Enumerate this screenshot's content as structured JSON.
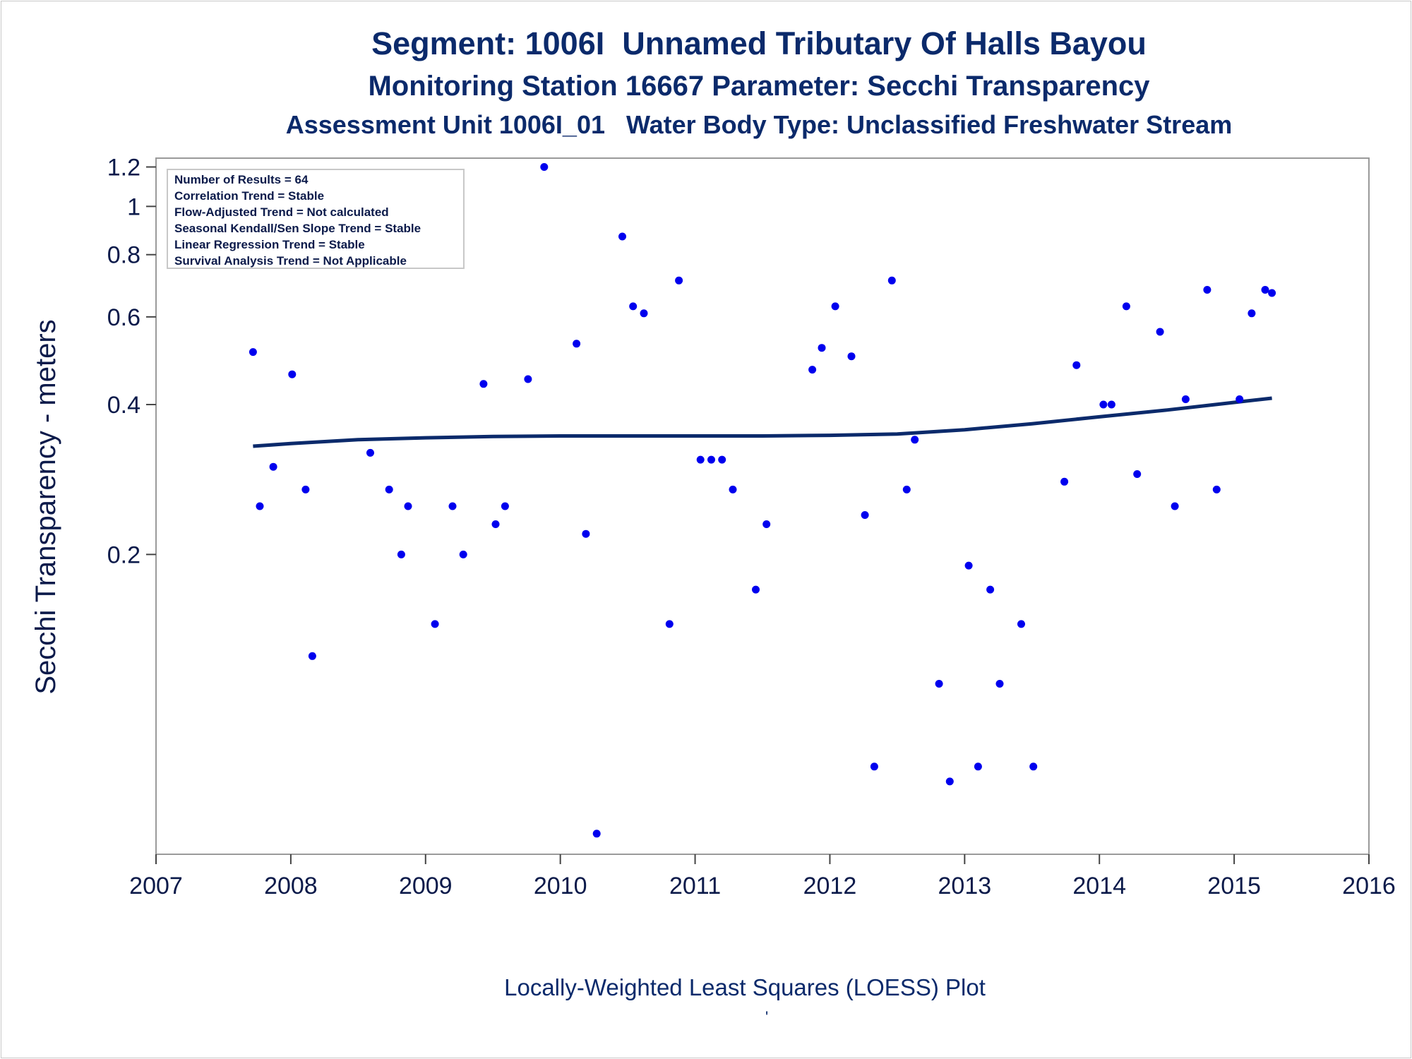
{
  "titles": {
    "line1": "Segment: 1006I  Unnamed Tributary Of Halls Bayou",
    "line2": "Monitoring Station 16667 Parameter: Secchi Transparency",
    "line3": "Assessment Unit 1006I_01   Water Body Type: Unclassified Freshwater Stream"
  },
  "stats_box": [
    "Number of Results = 64",
    "Correlation Trend = Stable",
    "Flow-Adjusted Trend = Not calculated",
    "Seasonal Kendall/Sen Slope Trend = Stable",
    "Linear Regression Trend = Stable",
    "Survival Analysis Trend = Not Applicable"
  ],
  "footnote": "Locally-Weighted Least Squares (LOESS) Plot",
  "footnote_mark": "'",
  "colors": {
    "points": "#0000ee",
    "line": "#0b2a6b",
    "text": "#0b2a6b"
  },
  "chart_data": {
    "type": "scatter",
    "title": "Segment: 1006I  Unnamed Tributary Of Halls Bayou",
    "xlabel": "",
    "ylabel": "Secchi Transparency - meters",
    "y_scale": "log",
    "xlim": [
      2007,
      2016
    ],
    "ylim": [
      0.05,
      1.25
    ],
    "x_ticks": [
      "2007",
      "2008",
      "2009",
      "2010",
      "2011",
      "2012",
      "2013",
      "2014",
      "2015",
      "2016"
    ],
    "y_ticks": [
      {
        "value": 1.2,
        "label": "1.2"
      },
      {
        "value": 1.0,
        "label": "1"
      },
      {
        "value": 0.8,
        "label": "0.8"
      },
      {
        "value": 0.6,
        "label": "0.6"
      },
      {
        "value": 0.4,
        "label": "0.4"
      },
      {
        "value": 0.2,
        "label": "0.2"
      }
    ],
    "grid": false,
    "legend": "none",
    "series": [
      {
        "kind": "points",
        "x": [
          2007.72,
          2007.77,
          2007.87,
          2008.01,
          2008.11,
          2008.16,
          2008.59,
          2008.73,
          2008.82,
          2008.87,
          2009.07,
          2009.2,
          2009.28,
          2009.43,
          2009.52,
          2009.59,
          2009.76,
          2009.88,
          2010.12,
          2010.19,
          2010.27,
          2010.46,
          2010.54,
          2010.62,
          2010.81,
          2010.88,
          2011.04,
          2011.12,
          2011.2,
          2011.28,
          2011.45,
          2011.53,
          2011.87,
          2011.94,
          2012.04,
          2012.16,
          2012.26,
          2012.33,
          2012.46,
          2012.57,
          2012.63,
          2012.81,
          2012.89,
          2013.03,
          2013.1,
          2013.19,
          2013.26,
          2013.42,
          2013.51,
          2013.74,
          2013.83,
          2014.03,
          2014.09,
          2014.2,
          2014.28,
          2014.45,
          2014.56,
          2014.64,
          2014.8,
          2014.87,
          2015.04,
          2015.13,
          2015.23,
          2015.28
        ],
        "y": [
          0.51,
          0.25,
          0.3,
          0.46,
          0.27,
          0.125,
          0.32,
          0.27,
          0.2,
          0.25,
          0.145,
          0.25,
          0.2,
          0.44,
          0.23,
          0.25,
          0.45,
          1.2,
          0.53,
          0.22,
          0.055,
          0.87,
          0.63,
          0.61,
          0.145,
          0.71,
          0.31,
          0.31,
          0.31,
          0.27,
          0.17,
          0.23,
          0.47,
          0.52,
          0.63,
          0.5,
          0.24,
          0.075,
          0.71,
          0.27,
          0.34,
          0.11,
          0.07,
          0.19,
          0.075,
          0.17,
          0.11,
          0.145,
          0.075,
          0.28,
          0.48,
          0.4,
          0.4,
          0.63,
          0.29,
          0.56,
          0.25,
          0.41,
          0.68,
          0.27,
          0.41,
          0.61,
          0.68,
          0.67
        ]
      },
      {
        "kind": "loess-line",
        "x": [
          2007.72,
          2008.0,
          2008.5,
          2009.0,
          2009.5,
          2010.0,
          2010.5,
          2011.0,
          2011.5,
          2012.0,
          2012.5,
          2013.0,
          2013.5,
          2014.0,
          2014.5,
          2015.0,
          2015.28
        ],
        "y": [
          0.33,
          0.334,
          0.34,
          0.343,
          0.345,
          0.346,
          0.346,
          0.346,
          0.346,
          0.347,
          0.349,
          0.356,
          0.366,
          0.378,
          0.39,
          0.404,
          0.412
        ]
      }
    ]
  }
}
